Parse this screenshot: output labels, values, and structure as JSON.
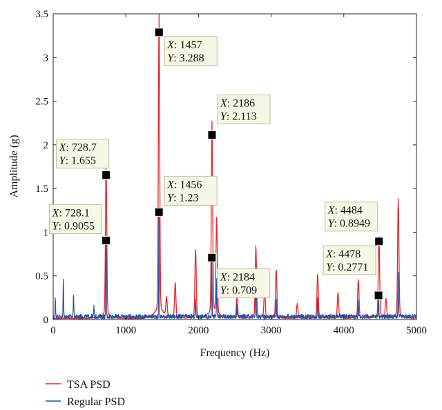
{
  "chart_data": {
    "type": "line",
    "title": "",
    "xlabel": "Frequency (Hz)",
    "ylabel": "Amplitude (g)",
    "xlim": [
      0,
      5000
    ],
    "ylim": [
      0,
      3.5
    ],
    "x_ticks": [
      0,
      1000,
      2000,
      3000,
      4000,
      5000
    ],
    "y_ticks": [
      0,
      0.5,
      1,
      1.5,
      2,
      2.5,
      3,
      3.5
    ],
    "x_tick_labels": [
      "0",
      "1000",
      "2000",
      "3000",
      "4000",
      "5000"
    ],
    "y_tick_labels": [
      "0",
      "0.5",
      "1",
      "1.5",
      "2",
      "2.5",
      "3",
      "3.5"
    ],
    "grid": false,
    "legend_position": "below",
    "series": [
      {
        "name": "TSA PSD",
        "color": "#e8262b",
        "peaks": [
          [
            728.7,
            1.655
          ],
          [
            1457,
            3.288
          ],
          [
            1560,
            0.2
          ],
          [
            1680,
            0.38
          ],
          [
            1960,
            0.74
          ],
          [
            2186,
            2.113
          ],
          [
            2250,
            1.05
          ],
          [
            2530,
            0.24
          ],
          [
            2790,
            0.78
          ],
          [
            2910,
            0.31
          ],
          [
            3070,
            0.52
          ],
          [
            3360,
            0.16
          ],
          [
            3640,
            0.47
          ],
          [
            3920,
            0.28
          ],
          [
            4200,
            0.42
          ],
          [
            4484,
            0.8949
          ],
          [
            4580,
            0.2
          ],
          [
            4750,
            1.29
          ]
        ],
        "baseline": 0.015
      },
      {
        "name": "Regular PSD",
        "color": "#2f4f9d",
        "peaks": [
          [
            30,
            0.22
          ],
          [
            140,
            0.44
          ],
          [
            280,
            0.28
          ],
          [
            560,
            0.13
          ],
          [
            728.1,
            0.9055
          ],
          [
            1456,
            1.23
          ],
          [
            1960,
            0.2
          ],
          [
            2184,
            0.709
          ],
          [
            2250,
            0.44
          ],
          [
            2530,
            0.13
          ],
          [
            2790,
            0.5
          ],
          [
            3070,
            0.22
          ],
          [
            3640,
            0.24
          ],
          [
            4200,
            0.16
          ],
          [
            4478,
            0.2771
          ],
          [
            4750,
            0.5
          ]
        ],
        "baseline": 0.03
      }
    ],
    "datatips": [
      {
        "x": 728.7,
        "y": 1.655,
        "x_label": "X",
        "x_text": ": 728.7",
        "y_label": "Y",
        "y_text": ": 1.655"
      },
      {
        "x": 728.1,
        "y": 0.9055,
        "x_label": "X",
        "x_text": ": 728.1",
        "y_label": "Y",
        "y_text": ": 0.9055"
      },
      {
        "x": 1457,
        "y": 3.288,
        "x_label": "X",
        "x_text": ": 1457",
        "y_label": "Y",
        "y_text": ": 3.288"
      },
      {
        "x": 1456,
        "y": 1.23,
        "x_label": "X",
        "x_text": ": 1456",
        "y_label": "Y",
        "y_text": ": 1.23"
      },
      {
        "x": 2186,
        "y": 2.113,
        "x_label": "X",
        "x_text": ": 2186",
        "y_label": "Y",
        "y_text": ": 2.113"
      },
      {
        "x": 2184,
        "y": 0.709,
        "x_label": "X",
        "x_text": ": 2184",
        "y_label": "Y",
        "y_text": ": 0.709"
      },
      {
        "x": 4484,
        "y": 0.8949,
        "x_label": "X",
        "x_text": ": 4484",
        "y_label": "Y",
        "y_text": ": 0.8949"
      },
      {
        "x": 4478,
        "y": 0.2771,
        "x_label": "X",
        "x_text": ": 4478",
        "y_label": "Y",
        "y_text": ": 0.2771"
      }
    ]
  }
}
